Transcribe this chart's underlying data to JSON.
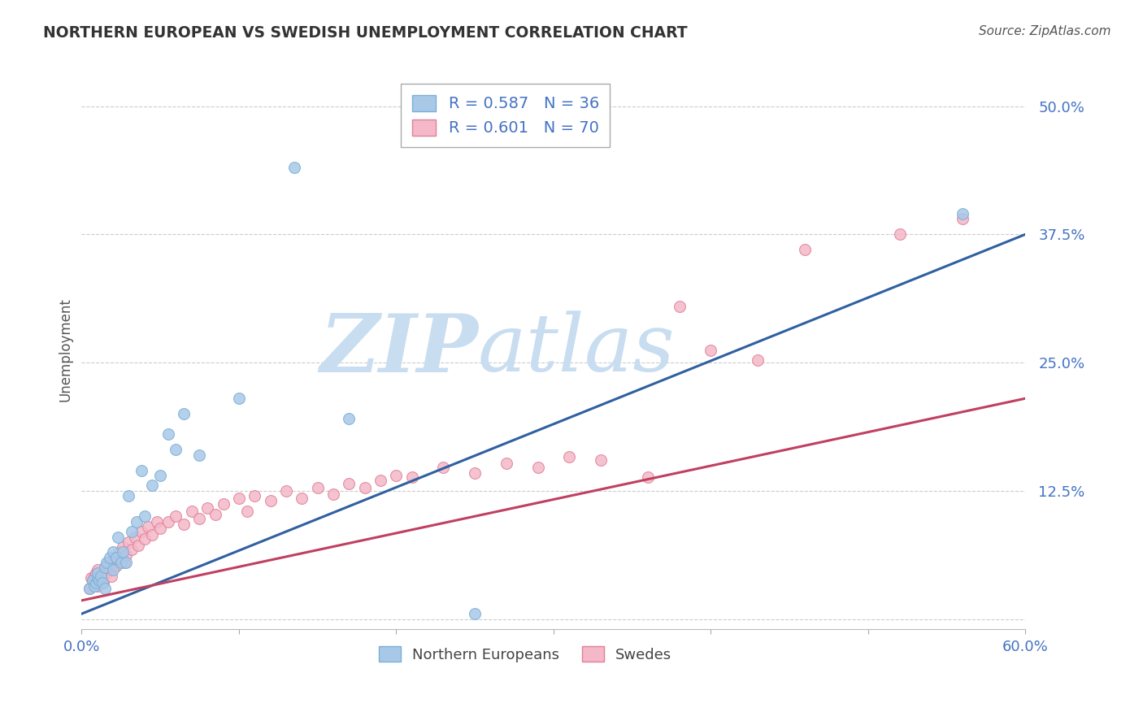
{
  "title": "NORTHERN EUROPEAN VS SWEDISH UNEMPLOYMENT CORRELATION CHART",
  "source": "Source: ZipAtlas.com",
  "ylabel": "Unemployment",
  "xlim": [
    0.0,
    0.6
  ],
  "ylim": [
    -0.01,
    0.535
  ],
  "yticks": [
    0.0,
    0.125,
    0.25,
    0.375,
    0.5
  ],
  "ytick_labels": [
    "",
    "12.5%",
    "25.0%",
    "37.5%",
    "50.0%"
  ],
  "xticks": [
    0.0,
    0.1,
    0.2,
    0.3,
    0.4,
    0.5,
    0.6
  ],
  "xtick_labels": [
    "0.0%",
    "",
    "",
    "",
    "",
    "",
    "60.0%"
  ],
  "blue_color": "#a8c8e8",
  "blue_edge_color": "#7bafd4",
  "pink_color": "#f4b8c8",
  "pink_edge_color": "#e08098",
  "line_blue_color": "#3060a0",
  "line_pink_color": "#c04060",
  "blue_R": 0.587,
  "blue_N": 36,
  "pink_R": 0.601,
  "pink_N": 70,
  "background_color": "#ffffff",
  "grid_color": "#cccccc",
  "axis_label_color": "#4472c4",
  "title_color": "#333333",
  "watermark_zip_color": "#dde8f4",
  "watermark_atlas_color": "#dde8f4",
  "blue_x": [
    0.005,
    0.007,
    0.008,
    0.009,
    0.01,
    0.01,
    0.011,
    0.012,
    0.013,
    0.015,
    0.015,
    0.016,
    0.018,
    0.02,
    0.02,
    0.022,
    0.023,
    0.025,
    0.026,
    0.028,
    0.03,
    0.032,
    0.035,
    0.038,
    0.04,
    0.045,
    0.05,
    0.055,
    0.06,
    0.065,
    0.075,
    0.1,
    0.135,
    0.17,
    0.25,
    0.56
  ],
  "blue_y": [
    0.03,
    0.038,
    0.032,
    0.035,
    0.04,
    0.045,
    0.038,
    0.042,
    0.035,
    0.03,
    0.05,
    0.055,
    0.06,
    0.048,
    0.065,
    0.06,
    0.08,
    0.055,
    0.065,
    0.055,
    0.12,
    0.085,
    0.095,
    0.145,
    0.1,
    0.13,
    0.14,
    0.18,
    0.165,
    0.2,
    0.16,
    0.215,
    0.44,
    0.195,
    0.005,
    0.395
  ],
  "pink_x": [
    0.005,
    0.006,
    0.007,
    0.008,
    0.008,
    0.009,
    0.01,
    0.01,
    0.011,
    0.012,
    0.013,
    0.014,
    0.015,
    0.016,
    0.017,
    0.018,
    0.019,
    0.02,
    0.021,
    0.022,
    0.023,
    0.024,
    0.025,
    0.026,
    0.027,
    0.028,
    0.03,
    0.032,
    0.034,
    0.036,
    0.038,
    0.04,
    0.042,
    0.045,
    0.048,
    0.05,
    0.055,
    0.06,
    0.065,
    0.07,
    0.075,
    0.08,
    0.085,
    0.09,
    0.1,
    0.105,
    0.11,
    0.12,
    0.13,
    0.14,
    0.15,
    0.16,
    0.17,
    0.18,
    0.19,
    0.2,
    0.21,
    0.23,
    0.25,
    0.27,
    0.29,
    0.31,
    0.33,
    0.36,
    0.38,
    0.4,
    0.43,
    0.46,
    0.52,
    0.56
  ],
  "pink_y": [
    0.03,
    0.04,
    0.038,
    0.035,
    0.042,
    0.045,
    0.032,
    0.048,
    0.038,
    0.042,
    0.04,
    0.035,
    0.05,
    0.045,
    0.055,
    0.048,
    0.042,
    0.055,
    0.06,
    0.052,
    0.058,
    0.065,
    0.06,
    0.07,
    0.055,
    0.062,
    0.075,
    0.068,
    0.08,
    0.072,
    0.085,
    0.078,
    0.09,
    0.082,
    0.095,
    0.088,
    0.095,
    0.1,
    0.092,
    0.105,
    0.098,
    0.108,
    0.102,
    0.112,
    0.118,
    0.105,
    0.12,
    0.115,
    0.125,
    0.118,
    0.128,
    0.122,
    0.132,
    0.128,
    0.135,
    0.14,
    0.138,
    0.148,
    0.142,
    0.152,
    0.148,
    0.158,
    0.155,
    0.138,
    0.305,
    0.262,
    0.252,
    0.36,
    0.375,
    0.39
  ],
  "blue_line_x": [
    0.0,
    0.6
  ],
  "blue_line_y_start": 0.005,
  "blue_line_y_end": 0.375,
  "pink_line_x": [
    0.0,
    0.6
  ],
  "pink_line_y_start": 0.018,
  "pink_line_y_end": 0.215,
  "marker_size": 100,
  "line_width": 2.2,
  "legend_color": "#4472c4"
}
